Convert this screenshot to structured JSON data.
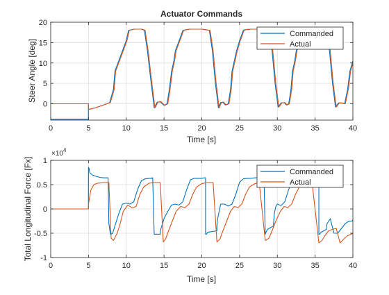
{
  "colors": {
    "commanded": "#0072BD",
    "actual": "#D95319",
    "axes": "#262626",
    "grid": "#dfdfdf",
    "background": "#ffffff"
  },
  "chart_data": [
    {
      "type": "line",
      "title": "Actuator Commands",
      "xlabel": "Time [s]",
      "ylabel": "Steer Angle [deg]",
      "xlim": [
        0,
        40
      ],
      "ylim": [
        -4,
        20
      ],
      "xticks": [
        0,
        5,
        10,
        15,
        20,
        25,
        30,
        35,
        40
      ],
      "yticks": [
        0,
        5,
        10,
        15,
        20
      ],
      "grid": true,
      "legend_position": "top-right",
      "series": [
        {
          "name": "Commanded",
          "color": "#0072BD",
          "x": [
            0,
            4.99,
            4.99,
            5.0,
            5.0,
            5.9,
            7.0,
            7.8,
            8.3,
            8.5,
            9.0,
            9.5,
            10.0,
            10.3,
            11.0,
            12.0,
            12.4,
            12.8,
            13.3,
            13.7,
            14.1,
            14.5,
            15.0,
            15.4,
            15.7,
            16.0,
            16.3,
            16.5,
            17.0,
            17.5,
            18.0,
            18.4,
            19.0,
            20.0,
            21.0,
            21.4,
            21.8,
            22.2,
            22.5,
            22.8,
            23.1,
            23.5,
            23.8,
            24.0,
            24.3,
            24.6,
            25.0,
            25.5,
            25.8,
            26.5,
            27.5,
            28.5,
            28.9,
            29.3,
            29.7,
            30.1,
            30.5,
            30.9,
            31.2,
            31.5,
            31.8,
            32.0,
            32.3,
            32.5,
            33.0,
            33.5,
            33.8,
            34.5,
            35.5,
            36.5,
            36.9,
            37.3,
            37.7,
            38.1,
            38.5,
            38.9,
            39.3,
            39.6,
            40.0
          ],
          "values": [
            -3.8,
            -3.8,
            0,
            0,
            -1.4,
            -1.0,
            -0.3,
            0.3,
            3.5,
            8.0,
            10.5,
            13.0,
            15.5,
            18.0,
            18.3,
            18.3,
            18.0,
            13.0,
            5.0,
            -1.0,
            0.4,
            0.5,
            -0.4,
            0.0,
            3.5,
            8.0,
            10.5,
            13.0,
            15.5,
            18.0,
            18.2,
            18.3,
            18.3,
            18.3,
            18.0,
            13.0,
            5.0,
            -1.0,
            0.3,
            0.4,
            -0.3,
            0.0,
            3.5,
            8.0,
            10.5,
            13.0,
            15.5,
            18.0,
            18.2,
            18.3,
            18.3,
            18.3,
            18.0,
            13.0,
            5.0,
            -0.8,
            0.2,
            0.3,
            -0.3,
            0.0,
            3.5,
            8.0,
            10.5,
            13.0,
            15.5,
            18.0,
            18.3,
            18.3,
            18.3,
            18.0,
            13.0,
            5.0,
            -0.8,
            0.2,
            0.2,
            0.0,
            3.5,
            8.0,
            10.5
          ]
        },
        {
          "name": "Actual",
          "color": "#D95319",
          "x": [
            0,
            5.0,
            5.0,
            5.9,
            7.0,
            7.9,
            8.4,
            8.6,
            9.1,
            9.6,
            10.1,
            10.4,
            11.1,
            12.1,
            12.5,
            12.9,
            13.4,
            13.8,
            14.2,
            14.6,
            15.1,
            15.5,
            15.8,
            16.1,
            16.4,
            16.6,
            17.1,
            17.6,
            18.1,
            18.5,
            19.1,
            20.1,
            21.1,
            21.5,
            21.9,
            22.3,
            22.6,
            22.9,
            23.2,
            23.6,
            23.9,
            24.1,
            24.4,
            24.7,
            25.1,
            25.6,
            25.9,
            26.6,
            27.6,
            28.6,
            29.0,
            29.4,
            29.8,
            30.2,
            30.6,
            31.0,
            31.3,
            31.6,
            31.9,
            32.1,
            32.4,
            32.6,
            33.1,
            33.6,
            33.9,
            34.6,
            35.6,
            36.6,
            37.0,
            37.4,
            37.8,
            38.2,
            38.6,
            39.0,
            39.4,
            39.7,
            40.0
          ],
          "values": [
            0,
            0,
            -1.4,
            -1.0,
            -0.3,
            0.3,
            3.5,
            8.0,
            10.5,
            13.0,
            15.5,
            18.0,
            18.3,
            18.3,
            18.0,
            13.0,
            5.0,
            -1.0,
            0.4,
            0.5,
            -0.4,
            0.0,
            3.5,
            8.0,
            10.5,
            13.0,
            15.5,
            18.0,
            18.2,
            18.3,
            18.3,
            18.3,
            18.0,
            13.0,
            5.0,
            -1.0,
            0.3,
            0.4,
            -0.3,
            0.0,
            3.5,
            8.0,
            10.5,
            13.0,
            15.5,
            18.0,
            18.2,
            18.3,
            18.3,
            18.3,
            18.0,
            13.0,
            5.0,
            -0.8,
            0.2,
            0.3,
            -0.3,
            0.0,
            3.5,
            8.0,
            10.5,
            13.0,
            15.5,
            18.0,
            18.3,
            18.3,
            18.3,
            18.0,
            13.0,
            5.0,
            -0.8,
            0.2,
            0.2,
            0.0,
            3.5,
            8.0,
            10.0
          ]
        }
      ]
    },
    {
      "type": "line",
      "title": "",
      "xlabel": "Time [s]",
      "ylabel": "Total Longitudinal Force [Fx]",
      "y_exponent_label": "×10",
      "y_exponent": "4",
      "xlim": [
        0,
        40
      ],
      "ylim": [
        -1,
        1
      ],
      "xticks": [
        0,
        5,
        10,
        15,
        20,
        25,
        30,
        35,
        40
      ],
      "yticks": [
        -1,
        -0.5,
        0,
        0.5,
        1
      ],
      "grid": true,
      "legend_position": "top-right",
      "series": [
        {
          "name": "Commanded",
          "color": "#0072BD",
          "x": [
            0,
            4.98,
            4.99,
            5.0,
            5.0,
            5.1,
            5.1,
            5.2,
            5.5,
            6.0,
            6.5,
            7.0,
            7.6,
            7.6,
            7.7,
            7.9,
            8.0,
            8.2,
            8.5,
            9.0,
            9.5,
            10.0,
            10.5,
            11.0,
            11.5,
            12.0,
            12.5,
            13.0,
            13.2,
            13.4,
            13.4,
            13.5,
            13.7,
            14.5,
            14.5,
            14.6,
            14.8,
            15.0,
            15.5,
            16.0,
            16.5,
            17.0,
            17.5,
            18.0,
            18.5,
            19.0,
            19.5,
            20.0,
            20.3,
            20.5,
            20.5,
            20.6,
            20.8,
            22.0,
            22.0,
            22.1,
            22.3,
            22.5,
            23.0,
            23.5,
            24.0,
            24.5,
            25.0,
            25.5,
            26.0,
            26.5,
            27.0,
            27.5,
            28.0,
            28.2,
            28.4,
            28.4,
            28.5,
            28.7,
            29.5,
            29.5,
            29.6,
            29.8,
            30.0,
            30.5,
            31.0,
            31.5,
            32.0,
            32.5,
            33.0,
            33.5,
            34.0,
            34.5,
            35.0,
            35.3,
            35.5,
            35.5,
            35.6,
            35.8,
            36.5,
            36.5,
            36.6,
            36.8,
            37.0,
            37.5,
            38.0,
            38.5,
            39.0,
            39.5,
            39.9,
            40.0
          ],
          "values": [
            0,
            0,
            0,
            0.85,
            0.86,
            0.82,
            0.8,
            0.74,
            0.7,
            0.67,
            0.65,
            0.64,
            0.64,
            0.64,
            -0.3,
            -0.52,
            -0.52,
            -0.5,
            -0.35,
            -0.1,
            0.1,
            0.12,
            0.1,
            0.15,
            0.4,
            0.58,
            0.62,
            0.63,
            0.63,
            0.63,
            0.64,
            0.64,
            -0.52,
            -0.52,
            -0.48,
            -0.4,
            -0.3,
            -0.2,
            -0.05,
            0.08,
            0.1,
            0.08,
            0.15,
            0.4,
            0.6,
            0.63,
            0.63,
            0.63,
            0.64,
            0.64,
            -0.52,
            -0.52,
            -0.48,
            -0.45,
            -0.35,
            -0.2,
            -0.05,
            0.1,
            0.1,
            0.06,
            0.1,
            0.3,
            0.55,
            0.62,
            0.63,
            0.63,
            0.64,
            0.64,
            0.85,
            0.85,
            -0.52,
            -0.52,
            -0.48,
            -0.42,
            -0.35,
            -0.3,
            -0.1,
            0.05,
            0.1,
            0.07,
            0.15,
            0.4,
            0.58,
            0.62,
            0.63,
            0.63,
            0.63,
            0.64,
            0.64,
            0.85,
            0.85,
            -0.52,
            -0.52,
            -0.48,
            -0.42,
            -0.35,
            -0.3,
            -0.25,
            -0.2,
            -0.5,
            -0.5,
            -0.4,
            -0.3,
            -0.25,
            -0.25,
            -0.22
          ]
        },
        {
          "name": "Actual",
          "color": "#D95319",
          "x": [
            0,
            5.0,
            5.0,
            5.3,
            5.7,
            6.2,
            7.0,
            7.7,
            7.7,
            8.0,
            8.3,
            8.8,
            9.2,
            9.6,
            10.2,
            10.8,
            11.3,
            11.8,
            12.3,
            13.0,
            13.6,
            14.5,
            14.9,
            15.2,
            15.6,
            16.1,
            16.6,
            17.2,
            17.8,
            18.3,
            18.8,
            19.3,
            20.0,
            20.6,
            21.5,
            22.0,
            22.4,
            22.8,
            23.3,
            23.8,
            24.3,
            24.8,
            25.3,
            25.8,
            26.3,
            27.0,
            27.6,
            28.4,
            28.9,
            29.3,
            29.8,
            30.4,
            30.9,
            31.4,
            31.9,
            32.4,
            32.9,
            33.4,
            34.0,
            34.6,
            35.5,
            35.9,
            36.3,
            36.8,
            37.3,
            37.8,
            38.3,
            38.8,
            39.3,
            39.8,
            40.0
          ],
          "values": [
            0,
            0,
            0.1,
            0.38,
            0.5,
            0.53,
            0.54,
            0.54,
            0.54,
            -0.6,
            -0.65,
            -0.5,
            -0.3,
            -0.05,
            0.08,
            0.02,
            0.05,
            0.3,
            0.45,
            0.53,
            0.54,
            0.54,
            -0.68,
            -0.62,
            -0.45,
            -0.25,
            -0.05,
            0.05,
            0.03,
            0.1,
            0.3,
            0.45,
            0.52,
            0.54,
            0.54,
            -0.68,
            -0.62,
            -0.45,
            -0.25,
            -0.05,
            0.05,
            0.03,
            0.1,
            0.3,
            0.45,
            0.52,
            0.54,
            -0.65,
            -0.6,
            -0.45,
            -0.25,
            -0.05,
            0.05,
            0.03,
            0.1,
            0.3,
            0.45,
            0.52,
            0.54,
            0.54,
            -0.7,
            -0.65,
            -0.55,
            -0.45,
            -0.42,
            -0.4,
            -0.7,
            -0.62,
            -0.55,
            -0.52,
            -0.5
          ]
        }
      ]
    }
  ]
}
